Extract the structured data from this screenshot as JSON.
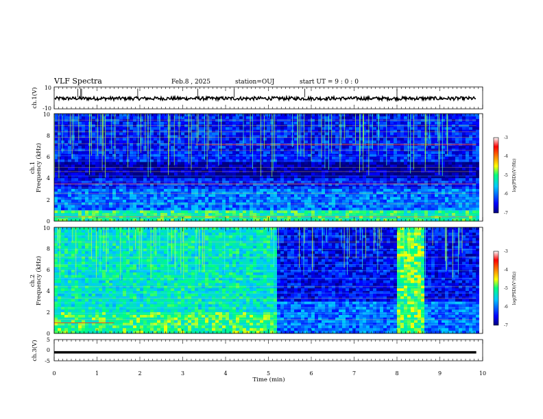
{
  "header": {
    "title": "VLF Spectra",
    "date": "Feb.8 , 2025",
    "station": "station=OUJ",
    "start": "start UT =  9 : 0 : 0"
  },
  "chart_data": [
    {
      "type": "line",
      "name": "ch.1 waveform",
      "ylabel": "ch.1(V)",
      "ylim": [
        -10,
        10
      ],
      "yticks": [
        "10",
        "-10"
      ],
      "x_range_min": [
        0,
        9.85
      ],
      "mean_v": -0.5,
      "spread_v": 1.6
    },
    {
      "type": "heatmap",
      "name": "ch.1 spectrogram",
      "ylabel_line1": "ch.1",
      "ylabel_line2": "Frequency (kHz)",
      "ylim_khz": [
        0,
        10
      ],
      "yticks": [
        "0",
        "2",
        "4",
        "6",
        "8",
        "10"
      ],
      "colorbar": {
        "min": -7,
        "max": -3,
        "ticks": [
          "-3",
          "-4",
          "-5",
          "-6",
          "-7"
        ],
        "label": "log(PSD)(V²/Hz)"
      },
      "level_range": [
        -7,
        -3
      ]
    },
    {
      "type": "heatmap",
      "name": "ch.2 spectrogram",
      "ylabel_line1": "ch.2",
      "ylabel_line2": "Frequency (kHz)",
      "ylim_khz": [
        0,
        10
      ],
      "yticks": [
        "0",
        "2",
        "4",
        "6",
        "8",
        "10"
      ],
      "colorbar": {
        "min": -7,
        "max": -3,
        "ticks": [
          "-3",
          "-4",
          "-5",
          "-6",
          "-7"
        ],
        "label": "log(PSD)(V²/Hz)"
      },
      "quiet_interval_min": [
        5.2,
        9.85
      ],
      "active_interval_min": [
        8.0,
        8.6
      ],
      "level_range": [
        -7,
        -3
      ]
    },
    {
      "type": "line",
      "name": "ch.3 voltage",
      "ylabel": "ch.3(V)",
      "ylim": [
        -5,
        5
      ],
      "yticks": [
        "5",
        "0",
        "-5"
      ],
      "constant_v": -1.0
    }
  ],
  "x_axis": {
    "label": "Time (min)",
    "range": [
      0,
      10
    ],
    "ticks": [
      "0",
      "1",
      "2",
      "3",
      "4",
      "5",
      "6",
      "7",
      "8",
      "9",
      "10"
    ]
  }
}
